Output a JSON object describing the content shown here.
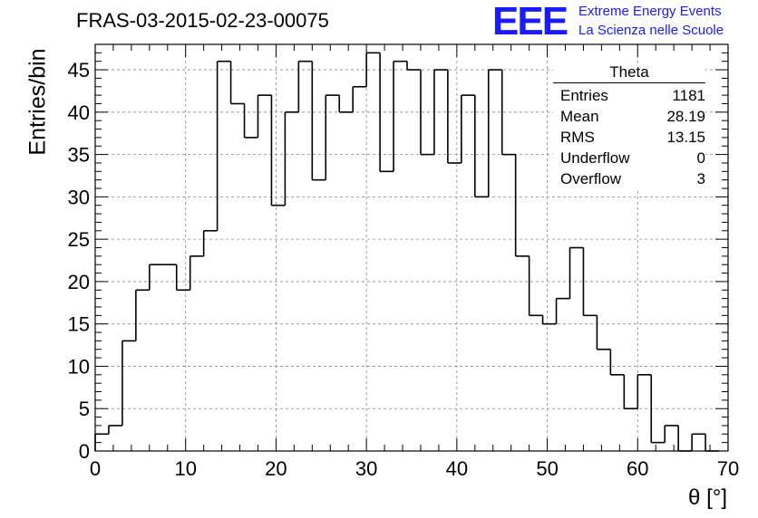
{
  "title": "FRAS-03-2015-02-23-00075",
  "logo": {
    "mark": "EEE",
    "line1": "Extreme Energy Events",
    "line2": "La Scienza nelle Scuole",
    "color": "#1a1aff"
  },
  "stats_box": {
    "title": "Theta",
    "rows": [
      {
        "label": "Entries",
        "value": "1181"
      },
      {
        "label": "Mean",
        "value": "28.19"
      },
      {
        "label": "RMS",
        "value": "13.15"
      },
      {
        "label": "Underflow",
        "value": "0"
      },
      {
        "label": "Overflow",
        "value": "3"
      }
    ]
  },
  "chart_data": {
    "type": "histogram",
    "xlabel": "θ [°]",
    "ylabel": "Entries/bin",
    "xlim": [
      0,
      70
    ],
    "ylim": [
      0,
      48
    ],
    "bin_width": 1.5,
    "x_ticks": [
      0,
      10,
      20,
      30,
      40,
      50,
      60,
      70
    ],
    "y_ticks": [
      0,
      5,
      10,
      15,
      20,
      25,
      30,
      35,
      40,
      45
    ],
    "grid": true,
    "line_color": "#000000",
    "values": [
      2,
      3,
      13,
      19,
      22,
      22,
      19,
      23,
      26,
      46,
      41,
      37,
      42,
      29,
      40,
      46,
      32,
      42,
      40,
      43,
      47,
      33,
      46,
      45,
      35,
      45,
      34,
      42,
      30,
      45,
      35,
      23,
      16,
      15,
      18,
      24,
      16,
      12,
      9,
      5,
      9,
      1,
      3,
      0,
      2,
      0
    ]
  }
}
